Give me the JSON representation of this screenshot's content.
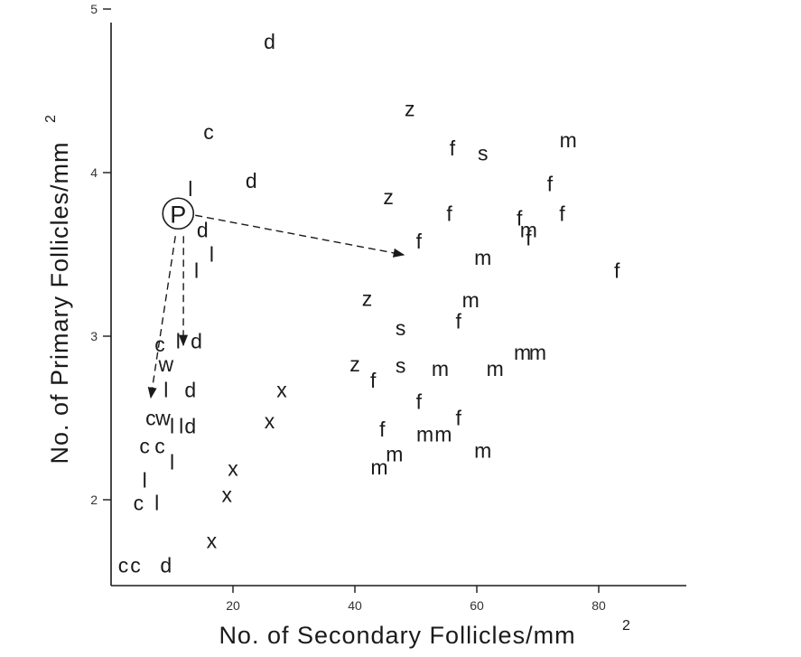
{
  "chart_data": {
    "type": "scatter",
    "xlabel": "No. of Secondary Follicles/mm",
    "xlabel_sup": "2",
    "ylabel": "No. of Primary Follicles/mm",
    "ylabel_sup": "2",
    "xlim": [
      0,
      90
    ],
    "ylim": [
      1.5,
      5.1
    ],
    "x_ticks": [
      20,
      40,
      60,
      80
    ],
    "y_ticks": [
      2,
      3,
      4,
      5
    ],
    "highlight": {
      "label": "P",
      "x": 11,
      "y": 3.75
    },
    "points": [
      {
        "label": "d",
        "x": 26,
        "y": 4.8
      },
      {
        "label": "c",
        "x": 16,
        "y": 4.25
      },
      {
        "label": "d",
        "x": 23,
        "y": 3.95
      },
      {
        "label": "l",
        "x": 13,
        "y": 3.9
      },
      {
        "label": "d",
        "x": 15,
        "y": 3.65
      },
      {
        "label": "l",
        "x": 16.5,
        "y": 3.5
      },
      {
        "label": "l",
        "x": 14,
        "y": 3.4
      },
      {
        "label": "c",
        "x": 8,
        "y": 2.95
      },
      {
        "label": "l",
        "x": 11,
        "y": 2.97
      },
      {
        "label": "d",
        "x": 14,
        "y": 2.97
      },
      {
        "label": "w",
        "x": 9,
        "y": 2.83
      },
      {
        "label": "l",
        "x": 9,
        "y": 2.67
      },
      {
        "label": "d",
        "x": 13,
        "y": 2.67
      },
      {
        "label": "c",
        "x": 6.5,
        "y": 2.5
      },
      {
        "label": "w",
        "x": 8.5,
        "y": 2.5
      },
      {
        "label": "l",
        "x": 10,
        "y": 2.45
      },
      {
        "label": "l",
        "x": 11.5,
        "y": 2.45
      },
      {
        "label": "d",
        "x": 13,
        "y": 2.45
      },
      {
        "label": "c",
        "x": 5.5,
        "y": 2.33
      },
      {
        "label": "c",
        "x": 8,
        "y": 2.33
      },
      {
        "label": "l",
        "x": 10,
        "y": 2.23
      },
      {
        "label": "l",
        "x": 5.5,
        "y": 2.12
      },
      {
        "label": "c",
        "x": 4.5,
        "y": 1.98
      },
      {
        "label": "l",
        "x": 7.5,
        "y": 1.98
      },
      {
        "label": "c",
        "x": 2,
        "y": 1.6
      },
      {
        "label": "c",
        "x": 4,
        "y": 1.6
      },
      {
        "label": "d",
        "x": 9,
        "y": 1.6
      },
      {
        "label": "x",
        "x": 28,
        "y": 2.67
      },
      {
        "label": "x",
        "x": 26,
        "y": 2.48
      },
      {
        "label": "x",
        "x": 20,
        "y": 2.19
      },
      {
        "label": "x",
        "x": 19,
        "y": 2.03
      },
      {
        "label": "x",
        "x": 16.5,
        "y": 1.75
      },
      {
        "label": "z",
        "x": 49,
        "y": 4.39
      },
      {
        "label": "f",
        "x": 56,
        "y": 4.15
      },
      {
        "label": "s",
        "x": 61,
        "y": 4.12
      },
      {
        "label": "m",
        "x": 75,
        "y": 4.2
      },
      {
        "label": "z",
        "x": 45.5,
        "y": 3.85
      },
      {
        "label": "f",
        "x": 72,
        "y": 3.93
      },
      {
        "label": "f",
        "x": 55.5,
        "y": 3.75
      },
      {
        "label": "f",
        "x": 67,
        "y": 3.72
      },
      {
        "label": "f",
        "x": 74,
        "y": 3.75
      },
      {
        "label": "m",
        "x": 68.5,
        "y": 3.65
      },
      {
        "label": "f",
        "x": 68.5,
        "y": 3.6
      },
      {
        "label": "f",
        "x": 50.5,
        "y": 3.58
      },
      {
        "label": "m",
        "x": 61,
        "y": 3.48
      },
      {
        "label": "f",
        "x": 83,
        "y": 3.4
      },
      {
        "label": "z",
        "x": 42,
        "y": 3.23
      },
      {
        "label": "m",
        "x": 59,
        "y": 3.22
      },
      {
        "label": "f",
        "x": 57,
        "y": 3.09
      },
      {
        "label": "s",
        "x": 47.5,
        "y": 3.05
      },
      {
        "label": "m",
        "x": 67.5,
        "y": 2.9
      },
      {
        "label": "m",
        "x": 70,
        "y": 2.9
      },
      {
        "label": "z",
        "x": 40,
        "y": 2.83
      },
      {
        "label": "s",
        "x": 47.5,
        "y": 2.82
      },
      {
        "label": "m",
        "x": 54,
        "y": 2.8
      },
      {
        "label": "m",
        "x": 63,
        "y": 2.8
      },
      {
        "label": "f",
        "x": 43,
        "y": 2.73
      },
      {
        "label": "f",
        "x": 50.5,
        "y": 2.6
      },
      {
        "label": "f",
        "x": 57,
        "y": 2.5
      },
      {
        "label": "f",
        "x": 44.5,
        "y": 2.43
      },
      {
        "label": "m",
        "x": 51.5,
        "y": 2.4
      },
      {
        "label": "m",
        "x": 54.5,
        "y": 2.4
      },
      {
        "label": "m",
        "x": 46.5,
        "y": 2.28
      },
      {
        "label": "m",
        "x": 44,
        "y": 2.2
      },
      {
        "label": "m",
        "x": 61,
        "y": 2.3
      }
    ]
  }
}
